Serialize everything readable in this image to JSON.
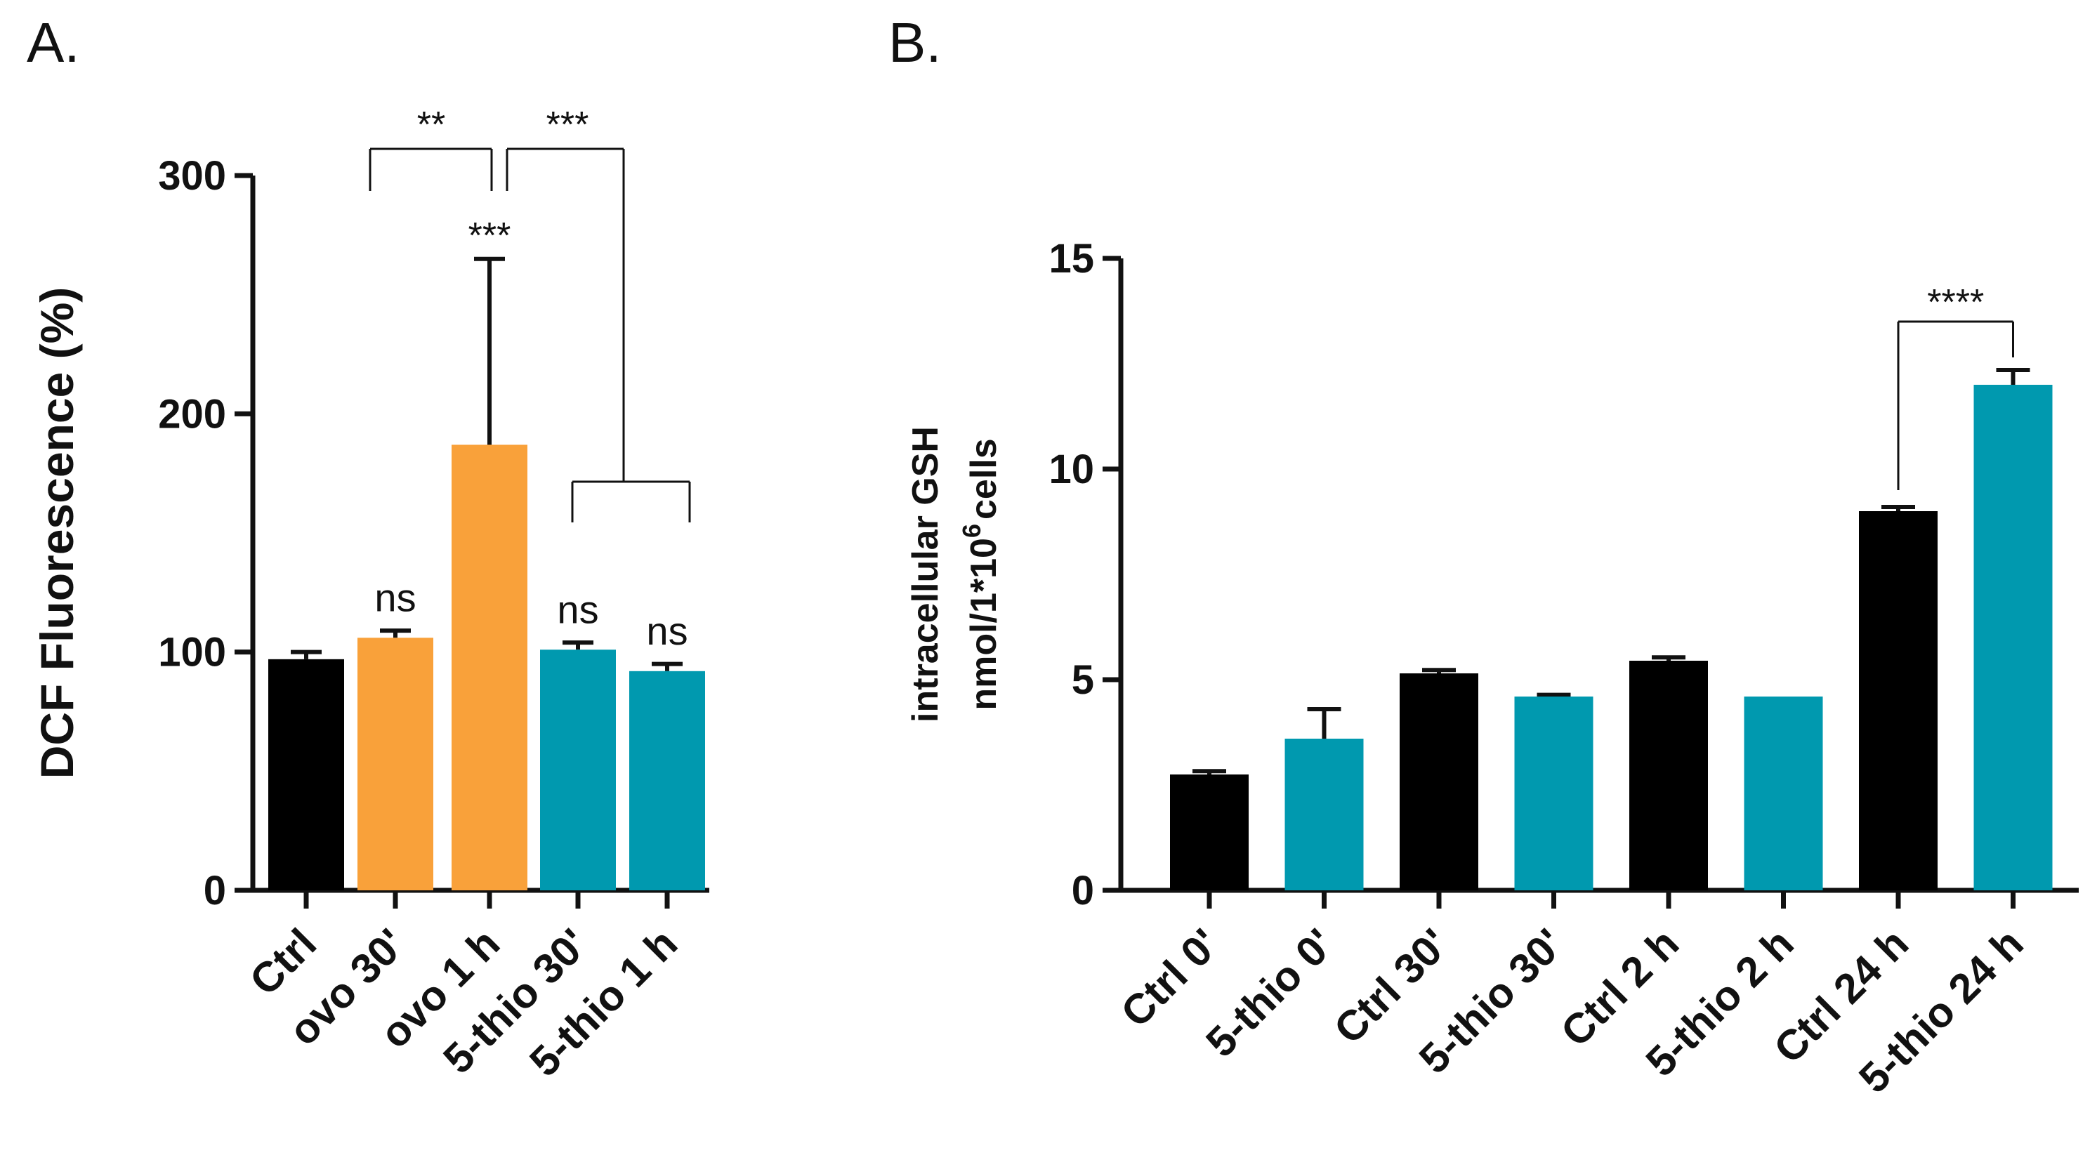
{
  "chart_data": [
    {
      "panel": "A.",
      "type": "bar",
      "ylabel": "DCF Fluorescence (%)",
      "xlabel": "",
      "ylim": [
        0,
        300
      ],
      "yticks": [
        0,
        100,
        200,
        300
      ],
      "categories": [
        "Ctrl",
        "ovo 30'",
        "ovo 1 h",
        "5-thio 30'",
        "5-thio 1 h"
      ],
      "values": [
        97,
        106,
        187,
        101,
        92
      ],
      "errors": [
        3,
        3,
        78,
        3,
        3
      ],
      "colors": [
        "#000000",
        "#F9A13A",
        "#F9A13A",
        "#0099AF",
        "#0099AF"
      ],
      "bar_annotations": [
        "",
        "ns",
        "***",
        "ns",
        "ns"
      ],
      "comparisons": [
        {
          "from": "ovo 30'",
          "to": "ovo 1 h",
          "label": "**"
        },
        {
          "from": "ovo 1 h",
          "to": [
            "5-thio 30'",
            "5-thio 1 h"
          ],
          "label": "***"
        }
      ]
    },
    {
      "panel": "B.",
      "type": "bar",
      "ylabel_line1": "intracellular GSH",
      "ylabel_line2_prefix": "nmol/1*10",
      "ylabel_line2_sup": "6",
      "ylabel_line2_suffix": "cells",
      "xlabel": "",
      "ylim": [
        0,
        15
      ],
      "yticks": [
        0,
        5,
        10,
        15
      ],
      "categories": [
        "Ctrl 0'",
        "5-thio 0'",
        "Ctrl 30'",
        "5-thio 30'",
        "Ctrl 2 h",
        "5-thio 2 h",
        "Ctrl 24 h",
        "5-thio 24 h"
      ],
      "values": [
        2.75,
        3.6,
        5.15,
        4.6,
        5.45,
        4.6,
        9.0,
        12.0
      ],
      "errors": [
        0.08,
        0.7,
        0.08,
        0.04,
        0.08,
        0.0,
        0.1,
        0.35
      ],
      "colors": [
        "#000000",
        "#0099AF",
        "#000000",
        "#0099AF",
        "#000000",
        "#0099AF",
        "#000000",
        "#0099AF"
      ],
      "comparisons": [
        {
          "from": "Ctrl 24 h",
          "to": "5-thio 24 h",
          "label": "****"
        }
      ]
    }
  ]
}
